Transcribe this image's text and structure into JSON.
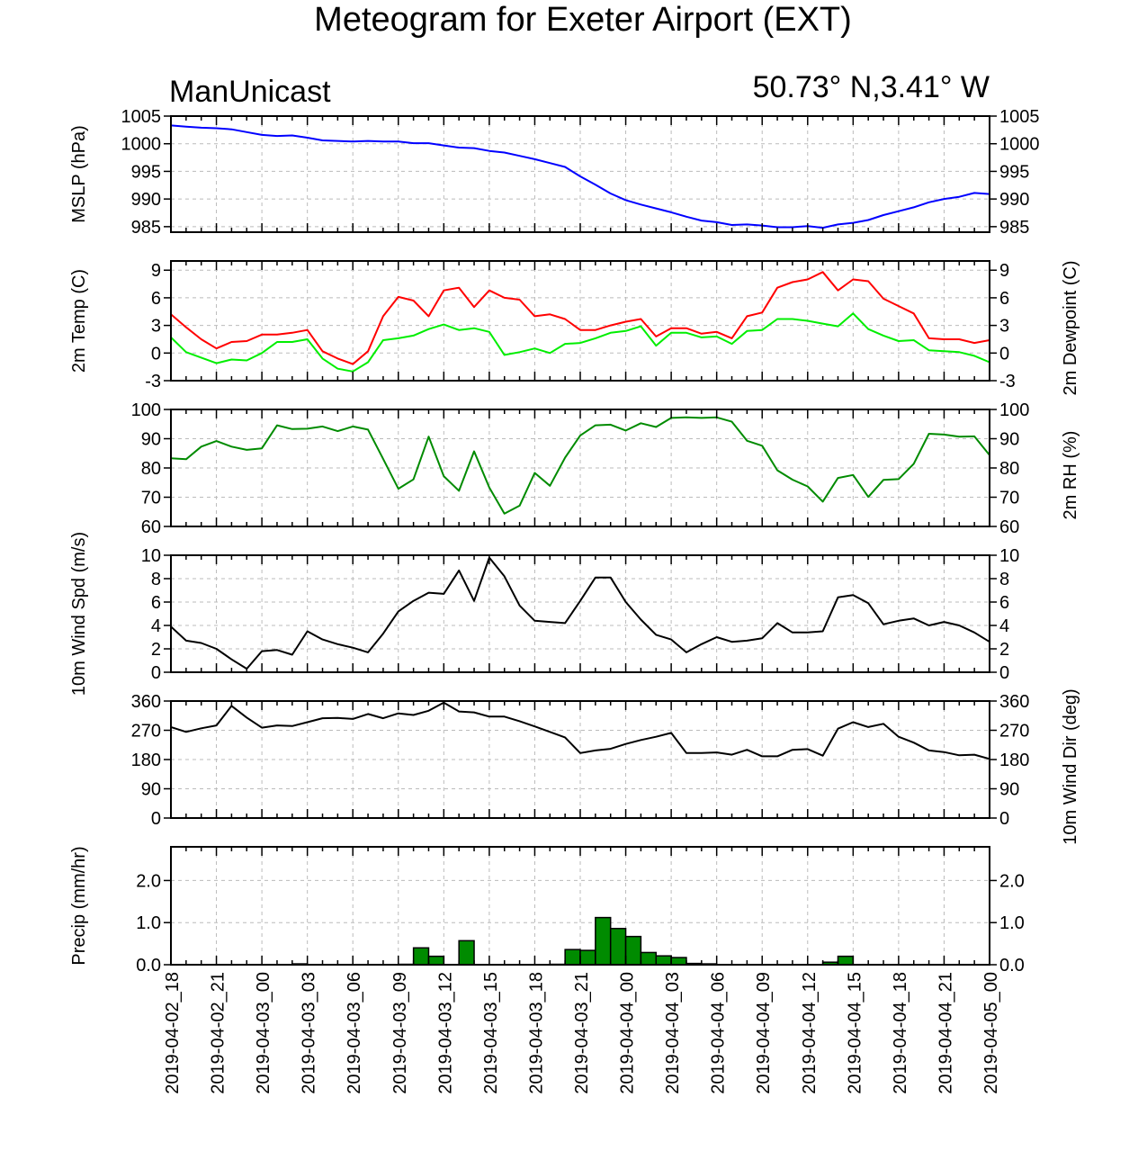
{
  "title": "Meteogram for Exeter Airport (EXT)",
  "model": "ManUnicast",
  "location": "50.73° N,3.41° W",
  "time_labels": [
    "2019-04-02_18",
    "2019-04-02_21",
    "2019-04-03_00",
    "2019-04-03_03",
    "2019-04-03_06",
    "2019-04-03_09",
    "2019-04-03_12",
    "2019-04-03_15",
    "2019-04-03_18",
    "2019-04-03_21",
    "2019-04-04_00",
    "2019-04-04_03",
    "2019-04-04_06",
    "2019-04-04_09",
    "2019-04-04_12",
    "2019-04-04_15",
    "2019-04-04_18",
    "2019-04-04_21",
    "2019-04-05_00"
  ],
  "chart_data": [
    {
      "type": "line",
      "ylabel": "MSLP (hPa)",
      "ylim": [
        984,
        1005
      ],
      "yticks": [
        985,
        990,
        995,
        1000,
        1005
      ],
      "grid": true,
      "x_hours": [
        0,
        1,
        2,
        3,
        4,
        5,
        6,
        7,
        8,
        9,
        10,
        11,
        12,
        13,
        14,
        15,
        16,
        17,
        18,
        19,
        20,
        21,
        22,
        23,
        24,
        25,
        26,
        27,
        28,
        29,
        30,
        31,
        32,
        33,
        34,
        35,
        36,
        37,
        38,
        39,
        40,
        41,
        42,
        43,
        44,
        45,
        46,
        47,
        48,
        49,
        50,
        51,
        52,
        53,
        54
      ],
      "series": [
        {
          "color": "#0000ff",
          "values": [
            1003.3,
            1003.1,
            1002.9,
            1002.8,
            1002.6,
            1002.1,
            1001.6,
            1001.4,
            1001.5,
            1001.1,
            1000.6,
            1000.5,
            1000.4,
            1000.5,
            1000.4,
            1000.4,
            1000.1,
            1000.1,
            999.7,
            999.3,
            999.2,
            998.7,
            998.4,
            997.8,
            997.2,
            996.5,
            995.8,
            994.1,
            992.6,
            991.0,
            989.8,
            989.0,
            988.3,
            987.6,
            986.8,
            986.1,
            985.8,
            985.3,
            985.4,
            985.2,
            984.9,
            984.9,
            985.1,
            984.8,
            985.4,
            985.7,
            986.2,
            987.1,
            987.8,
            988.5,
            989.4,
            990.0,
            990.4,
            991.1,
            990.9
          ]
        }
      ]
    },
    {
      "type": "line",
      "ylabel": "2m Temp (C)",
      "ylabel_right": "2m Dewpoint (C)",
      "ylim": [
        -3,
        10
      ],
      "yticks": [
        -3,
        0,
        3,
        6,
        9
      ],
      "grid": true,
      "x_hours": [
        0,
        1,
        2,
        3,
        4,
        5,
        6,
        7,
        8,
        9,
        10,
        11,
        12,
        13,
        14,
        15,
        16,
        17,
        18,
        19,
        20,
        21,
        22,
        23,
        24,
        25,
        26,
        27,
        28,
        29,
        30,
        31,
        32,
        33,
        34,
        35,
        36,
        37,
        38,
        39,
        40,
        41,
        42,
        43,
        44,
        45,
        46,
        47,
        48,
        49,
        50,
        51,
        52,
        53,
        54
      ],
      "series": [
        {
          "color": "#ff0000",
          "values": [
            4.2,
            2.8,
            1.5,
            0.5,
            1.2,
            1.3,
            2.0,
            2.0,
            2.2,
            2.5,
            0.2,
            -0.6,
            -1.2,
            0.2,
            4.0,
            6.1,
            5.7,
            4.0,
            6.8,
            7.1,
            5.0,
            6.8,
            6.0,
            5.8,
            4.0,
            4.2,
            3.7,
            2.5,
            2.5,
            3.0,
            3.4,
            3.7,
            1.8,
            2.7,
            2.7,
            2.1,
            2.3,
            1.6,
            4.0,
            4.4,
            7.1,
            7.7,
            8.0,
            8.8,
            6.8,
            8.0,
            7.8,
            5.9,
            5.1,
            4.3,
            1.6,
            1.5,
            1.5,
            1.1,
            1.4
          ]
        },
        {
          "color": "#00ee00",
          "values": [
            1.7,
            0.1,
            -0.5,
            -1.1,
            -0.7,
            -0.8,
            0.0,
            1.2,
            1.2,
            1.5,
            -0.6,
            -1.7,
            -2.0,
            -1.0,
            1.4,
            1.6,
            1.9,
            2.6,
            3.1,
            2.5,
            2.7,
            2.3,
            -0.2,
            0.1,
            0.5,
            0.0,
            1.0,
            1.1,
            1.6,
            2.2,
            2.4,
            2.9,
            0.8,
            2.2,
            2.2,
            1.7,
            1.8,
            1.0,
            2.4,
            2.5,
            3.7,
            3.7,
            3.5,
            3.2,
            2.9,
            4.3,
            2.6,
            1.9,
            1.3,
            1.4,
            0.3,
            0.2,
            0.1,
            -0.3,
            -1.0
          ]
        }
      ]
    },
    {
      "type": "line",
      "ylabel_right": "2m RH (%)",
      "ylim": [
        60,
        100
      ],
      "yticks": [
        60,
        70,
        80,
        90,
        100
      ],
      "grid": true,
      "x_hours": [
        0,
        1,
        2,
        3,
        4,
        5,
        6,
        7,
        8,
        9,
        10,
        11,
        12,
        13,
        14,
        15,
        16,
        17,
        18,
        19,
        20,
        21,
        22,
        23,
        24,
        25,
        26,
        27,
        28,
        29,
        30,
        31,
        32,
        33,
        34,
        35,
        36,
        37,
        38,
        39,
        40,
        41,
        42,
        43,
        44,
        45,
        46,
        47,
        48,
        49,
        50,
        51,
        52,
        53,
        54
      ],
      "series": [
        {
          "color": "#008b00",
          "values": [
            83.3,
            83,
            87.3,
            89.2,
            87.3,
            86.2,
            86.7,
            94.6,
            93.3,
            93.4,
            94.2,
            92.6,
            94.2,
            93.1,
            83.1,
            72.9,
            76.1,
            90.7,
            77.2,
            72.2,
            85.7,
            73.3,
            64.4,
            67.1,
            78.3,
            73.9,
            83.5,
            91.1,
            94.6,
            94.8,
            92.8,
            95.3,
            94.0,
            97.1,
            97.3,
            97.1,
            97.3,
            95.8,
            89.3,
            87.6,
            79.2,
            76.0,
            73.7,
            68.5,
            76.6,
            77.6,
            70.1,
            75.9,
            76.2,
            81.4,
            91.7,
            91.4,
            90.7,
            90.8,
            84.4
          ]
        }
      ]
    },
    {
      "type": "line",
      "ylabel": "10m Wind Spd (m/s)",
      "ylim": [
        0,
        10
      ],
      "yticks": [
        0,
        2,
        4,
        6,
        8,
        10
      ],
      "grid": true,
      "x_hours": [
        0,
        1,
        2,
        3,
        4,
        5,
        6,
        7,
        8,
        9,
        10,
        11,
        12,
        13,
        14,
        15,
        16,
        17,
        18,
        19,
        20,
        21,
        22,
        23,
        24,
        25,
        26,
        27,
        28,
        29,
        30,
        31,
        32,
        33,
        34,
        35,
        36,
        37,
        38,
        39,
        40,
        41,
        42,
        43,
        44,
        45,
        46,
        47,
        48,
        49,
        50,
        51,
        52,
        53,
        54
      ],
      "series": [
        {
          "color": "#000000",
          "values": [
            3.9,
            2.7,
            2.5,
            2.0,
            1.1,
            0.3,
            1.8,
            1.9,
            1.5,
            3.5,
            2.8,
            2.4,
            2.1,
            1.7,
            3.3,
            5.2,
            6.1,
            6.8,
            6.7,
            8.7,
            6.1,
            9.8,
            8.2,
            5.7,
            4.4,
            4.3,
            4.2,
            6.1,
            8.1,
            8.1,
            6.0,
            4.5,
            3.2,
            2.8,
            1.7,
            2.4,
            3.0,
            2.6,
            2.7,
            2.9,
            4.2,
            3.4,
            3.4,
            3.5,
            6.4,
            6.6,
            5.9,
            4.1,
            4.4,
            4.6,
            4.0,
            4.3,
            4.0,
            3.4,
            2.6
          ]
        }
      ]
    },
    {
      "type": "line",
      "ylabel_right": "10m Wind Dir (deg)",
      "ylim": [
        0,
        360
      ],
      "yticks": [
        0,
        90,
        180,
        270,
        360
      ],
      "grid": true,
      "x_hours": [
        0,
        1,
        2,
        3,
        4,
        5,
        6,
        7,
        8,
        9,
        10,
        11,
        12,
        13,
        14,
        15,
        16,
        17,
        18,
        19,
        20,
        21,
        22,
        23,
        24,
        25,
        26,
        27,
        28,
        29,
        30,
        31,
        32,
        33,
        34,
        35,
        36,
        37,
        38,
        39,
        40,
        41,
        42,
        43,
        44,
        45,
        46,
        47,
        48,
        49,
        50,
        51,
        52,
        53,
        54
      ],
      "series": [
        {
          "color": "#000000",
          "values": [
            280,
            265,
            276,
            285,
            345,
            309,
            278,
            285,
            283,
            295,
            307,
            308,
            305,
            320,
            307,
            322,
            317,
            330,
            355,
            328,
            325,
            312,
            312,
            298,
            282,
            265,
            248,
            200,
            208,
            213,
            228,
            240,
            250,
            262,
            200,
            200,
            202,
            195,
            210,
            190,
            190,
            210,
            212,
            192,
            275,
            295,
            280,
            290,
            250,
            232,
            208,
            203,
            193,
            195,
            182
          ]
        }
      ]
    },
    {
      "type": "bar",
      "ylabel": "Precip (mm/hr)",
      "ylim": [
        0,
        2.8
      ],
      "yticks": [
        0.0,
        1.0,
        2.0
      ],
      "ytick_labels": [
        "0.0",
        "1.0",
        "2.0"
      ],
      "grid": true,
      "x_hours": [
        8,
        15,
        16,
        17,
        19,
        25,
        26,
        27,
        28,
        29,
        30,
        31,
        32,
        33,
        34,
        35,
        43,
        44
      ],
      "values": [
        0.02,
        0.01,
        0.4,
        0.2,
        0.57,
        0.01,
        0.36,
        0.34,
        1.12,
        0.86,
        0.67,
        0.29,
        0.21,
        0.17,
        0.03,
        0.02,
        0.06,
        0.2
      ],
      "color": "#008b00"
    }
  ]
}
